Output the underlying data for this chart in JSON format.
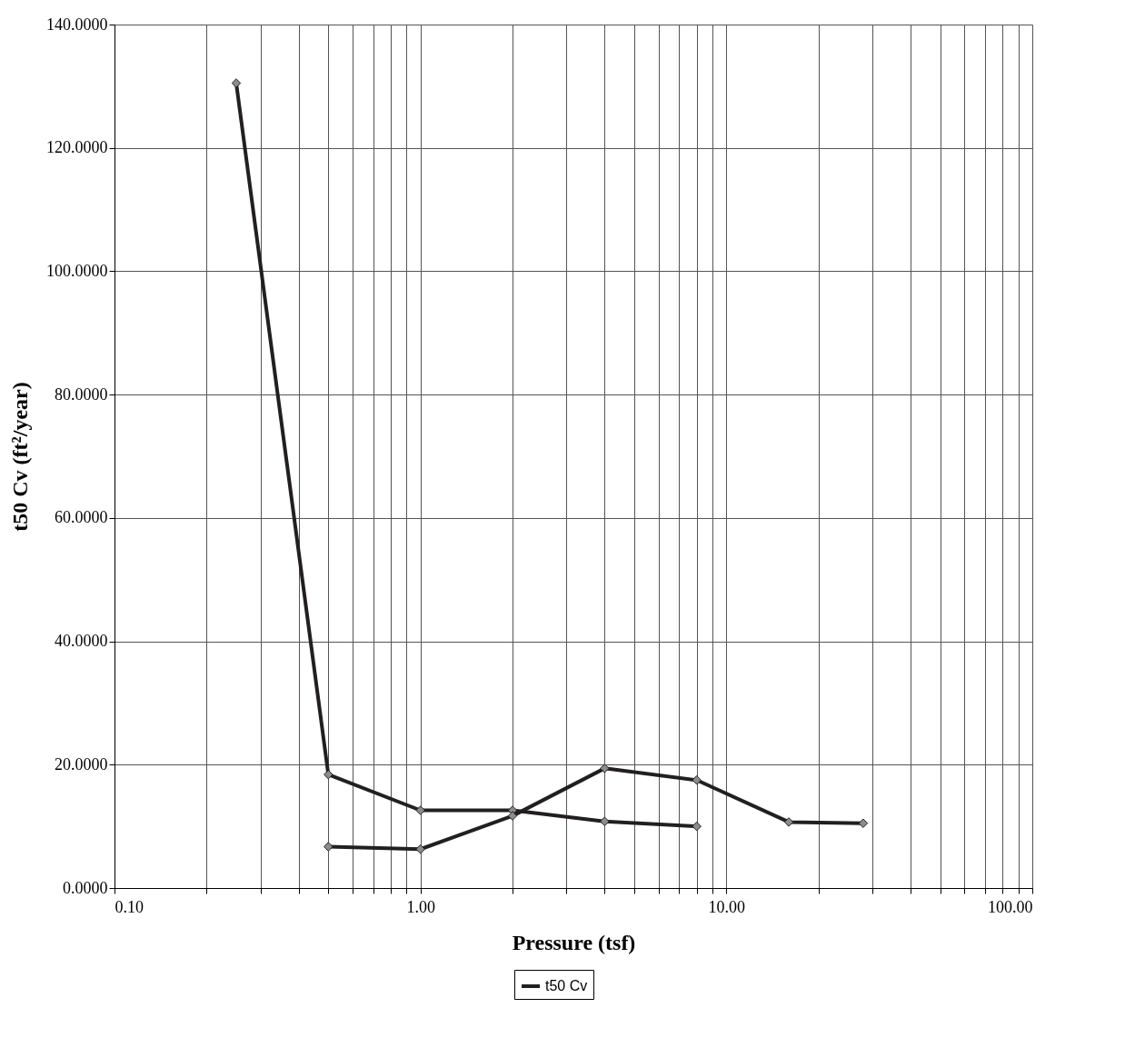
{
  "chart_data": {
    "type": "line",
    "xlabel": "Pressure (tsf)",
    "ylabel": "t50 Cv (ft²/year)",
    "log": "x",
    "xlim": [
      0.1,
      100
    ],
    "xticks": [
      {
        "value": 0.1,
        "label": "0.10"
      },
      {
        "value": 0.2,
        "label": null
      },
      {
        "value": 0.3,
        "label": null
      },
      {
        "value": 0.4,
        "label": null
      },
      {
        "value": 0.5,
        "label": null
      },
      {
        "value": 0.6,
        "label": null
      },
      {
        "value": 0.7,
        "label": null
      },
      {
        "value": 0.8,
        "label": null
      },
      {
        "value": 0.9,
        "label": null
      },
      {
        "value": 1,
        "label": "1.00"
      },
      {
        "value": 2,
        "label": null
      },
      {
        "value": 3,
        "label": null
      },
      {
        "value": 4,
        "label": null
      },
      {
        "value": 5,
        "label": null
      },
      {
        "value": 6,
        "label": null
      },
      {
        "value": 7,
        "label": null
      },
      {
        "value": 8,
        "label": null
      },
      {
        "value": 9,
        "label": null
      },
      {
        "value": 10,
        "label": "10.00"
      },
      {
        "value": 20,
        "label": null
      },
      {
        "value": 30,
        "label": null
      },
      {
        "value": 40,
        "label": null
      },
      {
        "value": 50,
        "label": null
      },
      {
        "value": 60,
        "label": null
      },
      {
        "value": 70,
        "label": null
      },
      {
        "value": 80,
        "label": null
      },
      {
        "value": 90,
        "label": null
      },
      {
        "value": 100,
        "label": "100.00"
      }
    ],
    "ylim": [
      0,
      140
    ],
    "yticks": [
      {
        "value": 0,
        "label": "0.0000"
      },
      {
        "value": 20,
        "label": "20.0000"
      },
      {
        "value": 40,
        "label": "40.0000"
      },
      {
        "value": 60,
        "label": "60.0000"
      },
      {
        "value": 80,
        "label": "80.0000"
      },
      {
        "value": 100,
        "label": "100.0000"
      },
      {
        "value": 120,
        "label": "120.0000"
      },
      {
        "value": 140,
        "label": "140.0000"
      }
    ],
    "grid": true,
    "legend": "bottom",
    "marker": "diamond",
    "line_style": "solid",
    "series": [
      {
        "name": "t50 Cv",
        "color": "#231f20",
        "x": [
          0.25,
          0.5,
          1,
          2,
          4,
          8
        ],
        "values": [
          130.5,
          18.4,
          12.6,
          12.6,
          10.8,
          10.0
        ]
      },
      {
        "color": "#231f20",
        "x": [
          0.5,
          1,
          2,
          4,
          8,
          16,
          28
        ],
        "values": [
          6.7,
          6.3,
          11.7,
          19.4,
          17.5,
          10.7,
          10.5
        ]
      }
    ]
  }
}
